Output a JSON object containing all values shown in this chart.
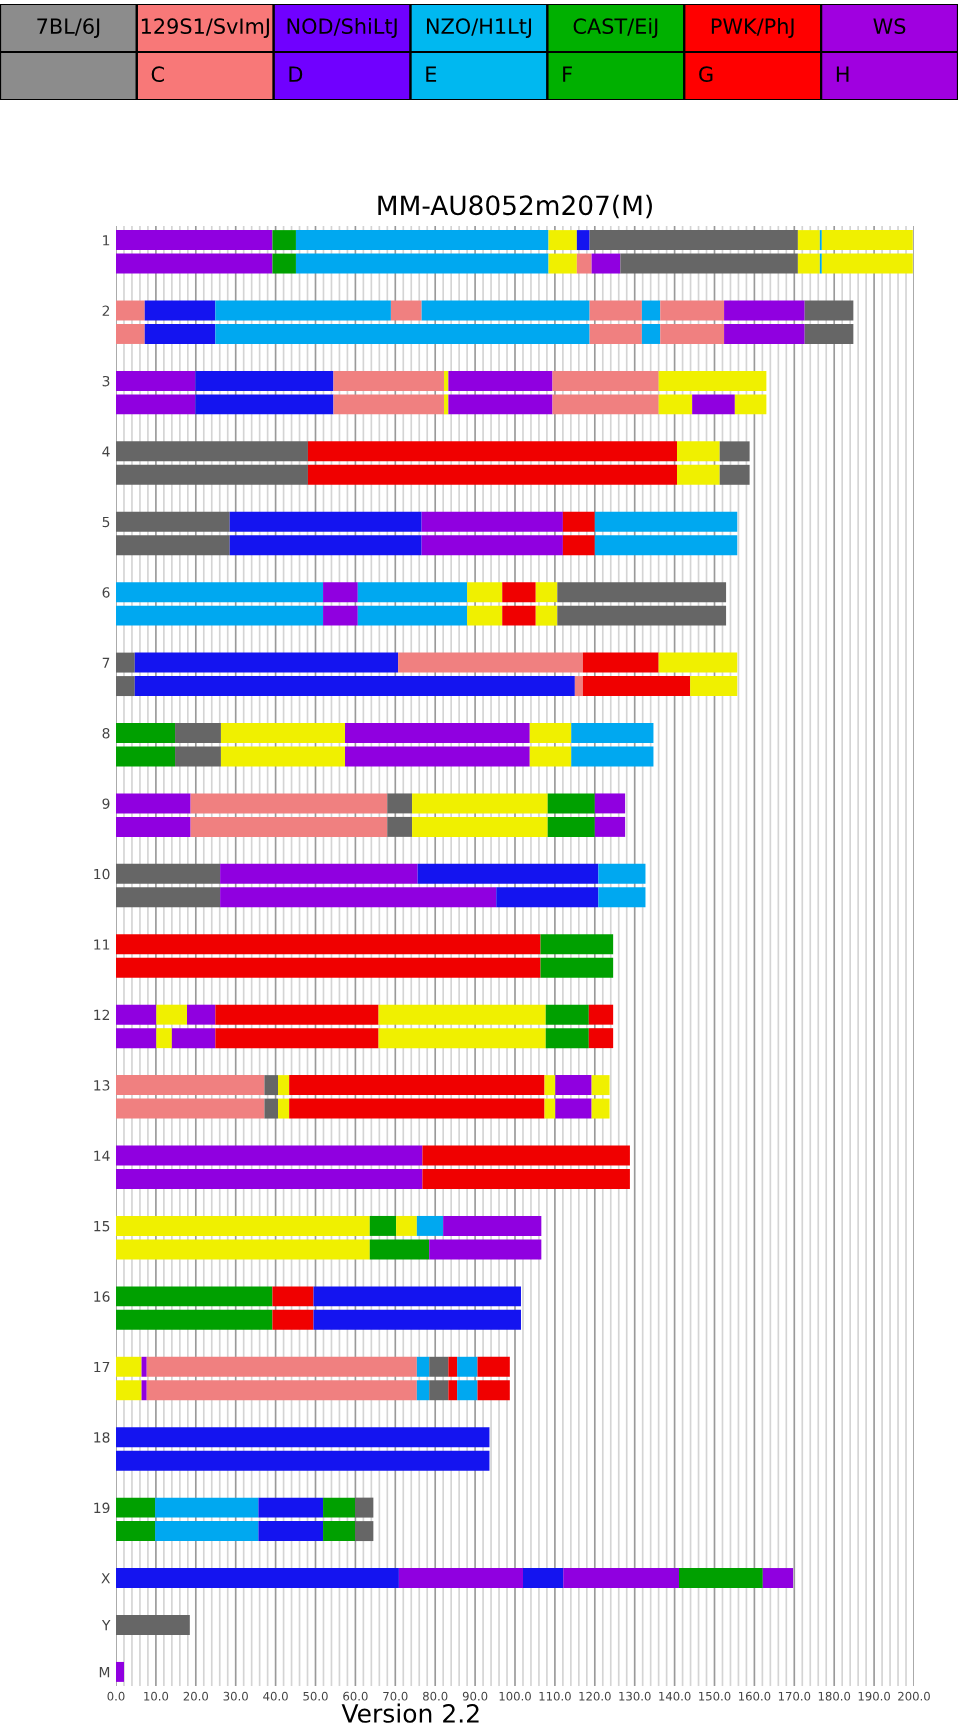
{
  "chart_data": [
    {
      "type": "other",
      "categories": [
        "7BL/6J",
        "129S1/SvImJ",
        "NOD/ShiLtJ",
        "NZO/H1LtJ",
        "CAST/EiJ",
        "PWK/PhJ",
        "WS"
      ],
      "colors": [
        "#8c8c8c",
        "#f87878",
        "#7000ff",
        "#00b8f0",
        "#00b000",
        "#ff0000",
        "#a000e0"
      ],
      "annotations": [
        "C",
        "D",
        "E",
        "F",
        "G",
        "H"
      ]
    },
    {
      "type": "bar",
      "orientation": "horizontal",
      "stacked": true,
      "title": "MM-AU8052m207(M)",
      "annotations": [
        "Version 2.2"
      ],
      "grid": "x",
      "xlim": [
        0,
        200
      ],
      "xticks": [
        {
          "value": 0,
          "label": "0.0"
        },
        {
          "value": 2,
          "label": null
        },
        {
          "value": 4,
          "label": null
        },
        {
          "value": 6,
          "label": null
        },
        {
          "value": 8,
          "label": null
        },
        {
          "value": 10,
          "label": "10.0"
        },
        {
          "value": 12,
          "label": null
        },
        {
          "value": 14,
          "label": null
        },
        {
          "value": 16,
          "label": null
        },
        {
          "value": 18,
          "label": null
        },
        {
          "value": 20,
          "label": "20.0"
        },
        {
          "value": 22,
          "label": null
        },
        {
          "value": 24,
          "label": null
        },
        {
          "value": 26,
          "label": null
        },
        {
          "value": 28,
          "label": null
        },
        {
          "value": 30,
          "label": "30.0"
        },
        {
          "value": 32,
          "label": null
        },
        {
          "value": 34,
          "label": null
        },
        {
          "value": 36,
          "label": null
        },
        {
          "value": 38,
          "label": null
        },
        {
          "value": 40,
          "label": "40.0"
        },
        {
          "value": 42,
          "label": null
        },
        {
          "value": 44,
          "label": null
        },
        {
          "value": 46,
          "label": null
        },
        {
          "value": 48,
          "label": null
        },
        {
          "value": 50,
          "label": "50.0"
        },
        {
          "value": 52,
          "label": null
        },
        {
          "value": 54,
          "label": null
        },
        {
          "value": 56,
          "label": null
        },
        {
          "value": 58,
          "label": null
        },
        {
          "value": 60,
          "label": "60.0"
        },
        {
          "value": 62,
          "label": null
        },
        {
          "value": 64,
          "label": null
        },
        {
          "value": 66,
          "label": null
        },
        {
          "value": 68,
          "label": null
        },
        {
          "value": 70,
          "label": "70.0"
        },
        {
          "value": 72,
          "label": null
        },
        {
          "value": 74,
          "label": null
        },
        {
          "value": 76,
          "label": null
        },
        {
          "value": 78,
          "label": null
        },
        {
          "value": 80,
          "label": "80.0"
        },
        {
          "value": 82,
          "label": null
        },
        {
          "value": 84,
          "label": null
        },
        {
          "value": 86,
          "label": null
        },
        {
          "value": 88,
          "label": null
        },
        {
          "value": 90,
          "label": "90.0"
        },
        {
          "value": 92,
          "label": null
        },
        {
          "value": 94,
          "label": null
        },
        {
          "value": 96,
          "label": null
        },
        {
          "value": 98,
          "label": null
        },
        {
          "value": 100,
          "label": "100.0"
        },
        {
          "value": 102,
          "label": null
        },
        {
          "value": 104,
          "label": null
        },
        {
          "value": 106,
          "label": null
        },
        {
          "value": 108,
          "label": null
        },
        {
          "value": 110,
          "label": "110.0"
        },
        {
          "value": 112,
          "label": null
        },
        {
          "value": 114,
          "label": null
        },
        {
          "value": 116,
          "label": null
        },
        {
          "value": 118,
          "label": null
        },
        {
          "value": 120,
          "label": "120.0"
        },
        {
          "value": 122,
          "label": null
        },
        {
          "value": 124,
          "label": null
        },
        {
          "value": 126,
          "label": null
        },
        {
          "value": 128,
          "label": null
        },
        {
          "value": 130,
          "label": "130.0"
        },
        {
          "value": 132,
          "label": null
        },
        {
          "value": 134,
          "label": null
        },
        {
          "value": 136,
          "label": null
        },
        {
          "value": 138,
          "label": null
        },
        {
          "value": 140,
          "label": "140.0"
        },
        {
          "value": 142,
          "label": null
        },
        {
          "value": 144,
          "label": null
        },
        {
          "value": 146,
          "label": null
        },
        {
          "value": 148,
          "label": null
        },
        {
          "value": 150,
          "label": "150.0"
        },
        {
          "value": 152,
          "label": null
        },
        {
          "value": 154,
          "label": null
        },
        {
          "value": 156,
          "label": null
        },
        {
          "value": 158,
          "label": null
        },
        {
          "value": 160,
          "label": "160.0"
        },
        {
          "value": 162,
          "label": null
        },
        {
          "value": 164,
          "label": null
        },
        {
          "value": 166,
          "label": null
        },
        {
          "value": 168,
          "label": null
        },
        {
          "value": 170,
          "label": "170.0"
        },
        {
          "value": 172,
          "label": null
        },
        {
          "value": 174,
          "label": null
        },
        {
          "value": 176,
          "label": null
        },
        {
          "value": 178,
          "label": null
        },
        {
          "value": 180,
          "label": "180.0"
        },
        {
          "value": 182,
          "label": null
        },
        {
          "value": 184,
          "label": null
        },
        {
          "value": 186,
          "label": null
        },
        {
          "value": 188,
          "label": null
        },
        {
          "value": 190,
          "label": "190.0"
        },
        {
          "value": 192,
          "label": null
        },
        {
          "value": 194,
          "label": null
        },
        {
          "value": 196,
          "label": null
        },
        {
          "value": 198,
          "label": null
        },
        {
          "value": 200,
          "label": "200.0"
        }
      ],
      "categories": [
        "1",
        null,
        null,
        "2",
        null,
        null,
        "3",
        null,
        null,
        "4",
        null,
        null,
        "5",
        null,
        null,
        "6",
        null,
        null,
        "7",
        null,
        null,
        "8",
        null,
        null,
        "9",
        null,
        null,
        "10",
        null,
        null,
        "11",
        null,
        null,
        "12",
        null,
        null,
        "13",
        null,
        null,
        "14",
        null,
        null,
        "15",
        null,
        null,
        "16",
        null,
        null,
        "17",
        null,
        null,
        "18",
        null,
        null,
        "19",
        null,
        null,
        "X",
        null,
        "Y",
        null,
        "M"
      ],
      "series": [
        {
          "values": [
            39.2,
            39.2,
            null,
            7.2,
            7.2,
            null,
            19.9,
            19.9,
            null,
            48.1,
            48.1,
            null,
            28.5,
            28.5,
            null,
            51.9,
            51.9,
            null,
            4.7,
            4.7,
            null,
            14.8,
            14.8,
            null,
            18.7,
            18.7,
            null,
            26.1,
            26.1,
            null,
            106.4,
            106.4,
            null,
            10.1,
            10.1,
            null,
            37.2,
            37.2,
            null,
            76.8,
            76.8,
            null,
            63.6,
            63.6,
            null,
            39.2,
            39.2,
            null,
            6.4,
            6.4,
            null,
            93.6,
            93.6,
            null,
            9.8,
            9.8,
            null,
            70.9,
            null,
            18.5,
            null,
            2
          ],
          "colors": [
            "#9000e0",
            "#9000e0",
            null,
            "#f08080",
            "#f08080",
            null,
            "#9000e0",
            "#9000e0",
            null,
            "#666666",
            "#666666",
            null,
            "#666666",
            "#666666",
            null,
            "#00a8f0",
            "#00a8f0",
            null,
            "#666666",
            "#666666",
            null,
            "#00a000",
            "#00a000",
            null,
            "#9000e0",
            "#9000e0",
            null,
            "#666666",
            "#666666",
            null,
            "#f00000",
            "#f00000",
            null,
            "#9000e0",
            "#9000e0",
            null,
            "#f08080",
            "#f08080",
            null,
            "#9000e0",
            "#9000e0",
            null,
            "#f0f000",
            "#f0f000",
            null,
            "#00a000",
            "#00a000",
            null,
            "#f0f000",
            "#f0f000",
            null,
            "#1414f0",
            "#1414f0",
            null,
            "#00a000",
            "#00a000",
            null,
            "#1414f0",
            null,
            "#666666",
            null,
            "#9000e0"
          ]
        },
        {
          "values": [
            5.9,
            5.9,
            null,
            17.7,
            17.7,
            null,
            34.6,
            34.6,
            null,
            92.5,
            92.5,
            null,
            48.1,
            48.1,
            null,
            8.7,
            8.7,
            null,
            66.0,
            110.3,
            null,
            11.5,
            11.5,
            null,
            49.3,
            49.3,
            null,
            49.5,
            69.2,
            null,
            18.2,
            18.2,
            null,
            7.7,
            3.9,
            null,
            3.4,
            3.4,
            null,
            52.0,
            52.0,
            null,
            6.6,
            14.9,
            null,
            10.3,
            10.3,
            null,
            1.3,
            1.3,
            null,
            null,
            null,
            null,
            25.9,
            25.9,
            null,
            31.1,
            null,
            null,
            null,
            null
          ],
          "colors": [
            "#00a000",
            "#00a000",
            null,
            "#1414f0",
            "#1414f0",
            null,
            "#1414f0",
            "#1414f0",
            null,
            "#f00000",
            "#f00000",
            null,
            "#1414f0",
            "#1414f0",
            null,
            "#9000e0",
            "#9000e0",
            null,
            "#1414f0",
            "#1414f0",
            null,
            "#666666",
            "#666666",
            null,
            "#f08080",
            "#f08080",
            null,
            "#9000e0",
            "#9000e0",
            null,
            "#00a000",
            "#00a000",
            null,
            "#f0f000",
            "#f0f000",
            null,
            "#666666",
            "#666666",
            null,
            "#f00000",
            "#f00000",
            null,
            "#00a000",
            "#00a000",
            null,
            "#f00000",
            "#f00000",
            null,
            "#9000e0",
            "#9000e0",
            null,
            null,
            null,
            null,
            "#00a8f0",
            "#00a8f0",
            null,
            "#9000e0",
            null,
            null,
            null,
            null
          ]
        },
        {
          "values": [
            63.3,
            63.3,
            null,
            44.0,
            93.8,
            null,
            27.7,
            27.7,
            null,
            10.7,
            10.7,
            null,
            35.4,
            35.4,
            null,
            27.4,
            27.4,
            null,
            46.3,
            2.0,
            null,
            31.1,
            31.1,
            null,
            6.2,
            6.2,
            null,
            45.3,
            25.6,
            null,
            null,
            null,
            null,
            7.1,
            10.9,
            null,
            2.8,
            2.8,
            null,
            null,
            null,
            null,
            5.2,
            28.1,
            null,
            52.0,
            52.0,
            null,
            67.7,
            67.7,
            null,
            null,
            null,
            null,
            16.2,
            16.2,
            null,
            10.1,
            null,
            null,
            null,
            null
          ],
          "colors": [
            "#00a8f0",
            "#00a8f0",
            null,
            "#00a8f0",
            "#00a8f0",
            null,
            "#f08080",
            "#f08080",
            null,
            "#f0f000",
            "#f0f000",
            null,
            "#9000e0",
            "#9000e0",
            null,
            "#00a8f0",
            "#00a8f0",
            null,
            "#f08080",
            "#f08080",
            null,
            "#f0f000",
            "#f0f000",
            null,
            "#666666",
            "#666666",
            null,
            "#1414f0",
            "#1414f0",
            null,
            null,
            null,
            null,
            "#9000e0",
            "#9000e0",
            null,
            "#f0f000",
            "#f0f000",
            null,
            null,
            null,
            null,
            "#f0f000",
            "#9000e0",
            null,
            "#1414f0",
            "#1414f0",
            null,
            "#f08080",
            "#f08080",
            null,
            null,
            null,
            null,
            "#1414f0",
            "#1414f0",
            null,
            "#1414f0",
            null,
            null,
            null,
            null
          ]
        },
        {
          "values": [
            7.1,
            7.1,
            null,
            7.7,
            13.1,
            null,
            1.1,
            1.1,
            null,
            7.5,
            7.5,
            null,
            8.0,
            8.0,
            null,
            8.8,
            8.8,
            null,
            19.0,
            26.9,
            null,
            46.3,
            46.3,
            null,
            34.0,
            34.0,
            null,
            11.8,
            11.8,
            null,
            null,
            null,
            null,
            40.9,
            40.9,
            null,
            64.0,
            64.0,
            null,
            null,
            null,
            null,
            6.6,
            null,
            null,
            null,
            null,
            null,
            3.1,
            3.1,
            null,
            null,
            null,
            null,
            8.0,
            8.0,
            null,
            29.0,
            null,
            null,
            null,
            null
          ],
          "colors": [
            "#f0f000",
            "#f0f000",
            null,
            "#f08080",
            "#f08080",
            null,
            "#f0f000",
            "#f0f000",
            null,
            "#666666",
            "#666666",
            null,
            "#f00000",
            "#f00000",
            null,
            "#f0f000",
            "#f0f000",
            null,
            "#f00000",
            "#f00000",
            null,
            "#9000e0",
            "#9000e0",
            null,
            "#f0f000",
            "#f0f000",
            null,
            "#00a8f0",
            "#00a8f0",
            null,
            null,
            null,
            null,
            "#f00000",
            "#f00000",
            null,
            "#f00000",
            "#f00000",
            null,
            null,
            null,
            null,
            "#00a8f0",
            null,
            null,
            null,
            null,
            null,
            "#00a8f0",
            "#00a8f0",
            null,
            null,
            null,
            null,
            "#00a000",
            "#00a000",
            null,
            "#9000e0",
            null,
            null,
            null,
            null
          ]
        },
        {
          "values": [
            3.2,
            3.7,
            null,
            42.1,
            4.6,
            null,
            26.1,
            26.1,
            null,
            null,
            null,
            null,
            35.7,
            35.7,
            null,
            8.4,
            8.4,
            null,
            19.7,
            11.8,
            null,
            10.4,
            10.4,
            null,
            11.8,
            11.8,
            null,
            null,
            null,
            null,
            null,
            null,
            null,
            41.9,
            41.9,
            null,
            2.7,
            2.7,
            null,
            null,
            null,
            null,
            24.6,
            null,
            null,
            null,
            null,
            null,
            4.8,
            4.8,
            null,
            null,
            null,
            null,
            4.6,
            4.6,
            null,
            21.0,
            null,
            null,
            null,
            null
          ],
          "colors": [
            "#1414f0",
            "#f08080",
            null,
            "#00a8f0",
            "#00a8f0",
            null,
            "#9000e0",
            "#9000e0",
            null,
            null,
            null,
            null,
            "#00a8f0",
            "#00a8f0",
            null,
            "#f00000",
            "#f00000",
            null,
            "#f0f000",
            "#f0f000",
            null,
            "#f0f000",
            "#f0f000",
            null,
            "#00a000",
            "#00a000",
            null,
            null,
            null,
            null,
            null,
            null,
            null,
            "#f0f000",
            "#f0f000",
            null,
            "#f0f000",
            "#f0f000",
            null,
            null,
            null,
            null,
            "#9000e0",
            null,
            null,
            null,
            null,
            null,
            "#666666",
            "#666666",
            null,
            null,
            null,
            null,
            "#666666",
            "#666666",
            null,
            "#00a000",
            null,
            null,
            null,
            null
          ]
        },
        {
          "values": [
            52.2,
            7.2,
            null,
            13.1,
            16.0,
            null,
            26.6,
            26.6,
            null,
            null,
            null,
            null,
            null,
            null,
            null,
            5.4,
            5.4,
            null,
            null,
            null,
            null,
            20.6,
            20.6,
            null,
            7.6,
            7.6,
            null,
            null,
            null,
            null,
            null,
            null,
            null,
            10.8,
            10.8,
            null,
            9.1,
            9.1,
            null,
            null,
            null,
            null,
            null,
            null,
            null,
            null,
            null,
            null,
            2.2,
            2.2,
            null,
            null,
            null,
            null,
            null,
            null,
            null,
            7.6,
            null,
            null,
            null,
            null
          ],
          "colors": [
            "#666666",
            "#9000e0",
            null,
            "#f08080",
            "#f08080",
            null,
            "#f08080",
            "#f08080",
            null,
            null,
            null,
            null,
            null,
            null,
            null,
            "#f0f000",
            "#f0f000",
            null,
            null,
            null,
            null,
            "#00a8f0",
            "#00a8f0",
            null,
            "#9000e0",
            "#9000e0",
            null,
            null,
            null,
            null,
            null,
            null,
            null,
            "#00a000",
            "#00a000",
            null,
            "#9000e0",
            "#9000e0",
            null,
            null,
            null,
            null,
            null,
            null,
            null,
            null,
            null,
            null,
            "#f00000",
            "#f00000",
            null,
            null,
            null,
            null,
            null,
            null,
            null,
            "#9000e0",
            null,
            null,
            null,
            null
          ]
        },
        {
          "values": [
            5.5,
            44.5,
            null,
            4.6,
            20.2,
            null,
            27.0,
            8.4,
            null,
            null,
            null,
            null,
            null,
            null,
            null,
            42.3,
            42.3,
            null,
            null,
            null,
            null,
            null,
            null,
            null,
            null,
            null,
            null,
            null,
            null,
            null,
            null,
            null,
            null,
            6.1,
            6.1,
            null,
            4.5,
            4.5,
            null,
            null,
            null,
            null,
            null,
            null,
            null,
            null,
            null,
            null,
            5.1,
            5.1,
            null,
            null,
            null,
            null,
            null,
            null,
            null,
            null,
            null,
            null,
            null,
            null
          ],
          "colors": [
            "#f0f000",
            "#666666",
            null,
            "#00a8f0",
            "#9000e0",
            null,
            "#f0f000",
            "#f0f000",
            null,
            null,
            null,
            null,
            null,
            null,
            null,
            "#666666",
            "#666666",
            null,
            null,
            null,
            null,
            null,
            null,
            null,
            null,
            null,
            null,
            null,
            null,
            null,
            null,
            null,
            null,
            "#f00000",
            "#f00000",
            null,
            "#f0f000",
            "#f0f000",
            null,
            null,
            null,
            null,
            null,
            null,
            null,
            null,
            null,
            null,
            "#00a8f0",
            "#00a8f0",
            null,
            null,
            null,
            null,
            null,
            null,
            null,
            null,
            null,
            null,
            null,
            null
          ]
        },
        {
          "values": [
            0.5,
            5.5,
            null,
            16.0,
            12.2,
            null,
            null,
            10.7,
            null,
            null,
            null,
            null,
            null,
            null,
            null,
            null,
            null,
            null,
            null,
            null,
            null,
            null,
            null,
            null,
            null,
            null,
            null,
            null,
            null,
            null,
            null,
            null,
            null,
            null,
            null,
            null,
            null,
            null,
            null,
            null,
            null,
            null,
            null,
            null,
            null,
            null,
            null,
            null,
            8.1,
            8.1,
            null,
            null,
            null,
            null,
            null,
            null,
            null,
            null,
            null,
            null,
            null,
            null
          ],
          "colors": [
            "#00a8f0",
            "#f0f000",
            null,
            "#f08080",
            "#666666",
            null,
            null,
            "#9000e0",
            null,
            null,
            null,
            null,
            null,
            null,
            null,
            null,
            null,
            null,
            null,
            null,
            null,
            null,
            null,
            null,
            null,
            null,
            null,
            null,
            null,
            null,
            null,
            null,
            null,
            null,
            null,
            null,
            null,
            null,
            null,
            null,
            null,
            null,
            null,
            null,
            null,
            null,
            null,
            null,
            "#f00000",
            "#f00000",
            null,
            null,
            null,
            null,
            null,
            null,
            null,
            null,
            null,
            null,
            null,
            null
          ]
        },
        {
          "values": [
            22.8,
            0.5,
            null,
            20.2,
            null,
            null,
            null,
            7.9,
            null,
            null,
            null,
            null,
            null,
            null,
            null,
            null,
            null,
            null,
            null,
            null,
            null,
            null,
            null,
            null,
            null,
            null,
            null,
            null,
            null,
            null,
            null,
            null,
            null,
            null,
            null,
            null,
            null,
            null,
            null,
            null,
            null,
            null,
            null,
            null,
            null,
            null,
            null,
            null,
            null,
            null,
            null,
            null,
            null,
            null,
            null,
            null,
            null,
            null,
            null,
            null,
            null,
            null
          ],
          "colors": [
            "#f0f000",
            "#00a8f0",
            null,
            "#9000e0",
            null,
            null,
            null,
            "#f0f000",
            null,
            null,
            null,
            null,
            null,
            null,
            null,
            null,
            null,
            null,
            null,
            null,
            null,
            null,
            null,
            null,
            null,
            null,
            null,
            null,
            null,
            null,
            null,
            null,
            null,
            null,
            null,
            null,
            null,
            null,
            null,
            null,
            null,
            null,
            null,
            null,
            null,
            null,
            null,
            null,
            null,
            null,
            null,
            null,
            null,
            null,
            null,
            null,
            null,
            null,
            null,
            null,
            null,
            null
          ]
        },
        {
          "values": [
            null,
            22.8,
            null,
            12.2,
            null,
            null,
            null,
            null,
            null,
            null,
            null,
            null,
            null,
            null,
            null,
            null,
            null,
            null,
            null,
            null,
            null,
            null,
            null,
            null,
            null,
            null,
            null,
            null,
            null,
            null,
            null,
            null,
            null,
            null,
            null,
            null,
            null,
            null,
            null,
            null,
            null,
            null,
            null,
            null,
            null,
            null,
            null,
            null,
            null,
            null,
            null,
            null,
            null,
            null,
            null,
            null,
            null,
            null,
            null,
            null,
            null,
            null
          ],
          "colors": [
            null,
            "#f0f000",
            null,
            "#666666",
            null,
            null,
            null,
            null,
            null,
            null,
            null,
            null,
            null,
            null,
            null,
            null,
            null,
            null,
            null,
            null,
            null,
            null,
            null,
            null,
            null,
            null,
            null,
            null,
            null,
            null,
            null,
            null,
            null,
            null,
            null,
            null,
            null,
            null,
            null,
            null,
            null,
            null,
            null,
            null,
            null,
            null,
            null,
            null,
            null,
            null,
            null,
            null,
            null,
            null,
            null,
            null,
            null,
            null,
            null,
            null,
            null,
            null
          ]
        }
      ]
    }
  ]
}
